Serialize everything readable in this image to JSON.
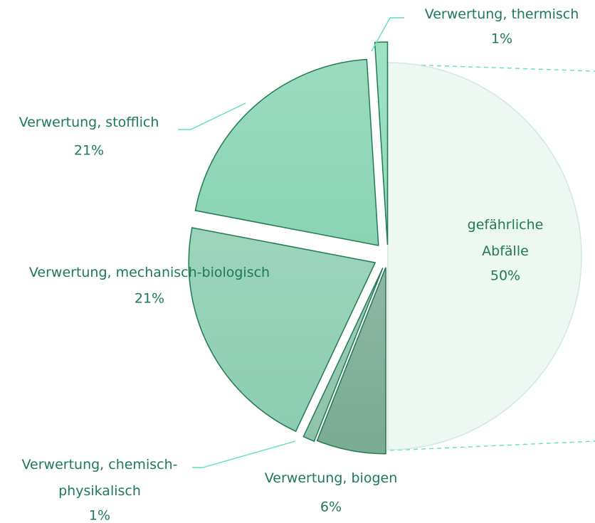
{
  "chart_data": {
    "type": "pie",
    "categories": [
      "gefährliche Abfälle",
      "Verwertung, biogen",
      "Verwertung, chemisch-physikalisch",
      "Verwertung, mechanisch-biologisch",
      "Verwertung, stofflich",
      "Verwertung, thermisch"
    ],
    "values": [
      50,
      6,
      1,
      21,
      21,
      1
    ],
    "value_labels": [
      "50%",
      "6%",
      "1%",
      "21%",
      "21%",
      "1%"
    ],
    "colors": [
      "#eef8f3",
      "#7aab93",
      "#8ec3aa",
      "#8ccdb1",
      "#8ad4b4",
      "#8edcbb"
    ]
  }
}
